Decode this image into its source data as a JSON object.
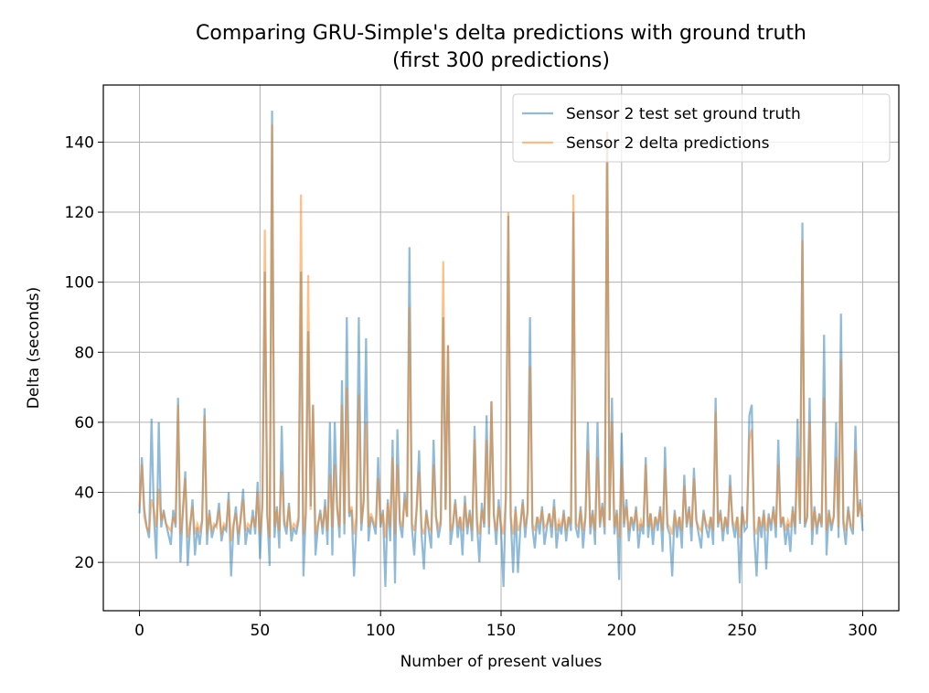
{
  "chart_data": {
    "type": "line",
    "title": "Comparing GRU-Simple's delta predictions with ground truth\n(first 300 predictions)",
    "x_label": "Number of present values",
    "y_label": "Delta (seconds)",
    "xlim": [
      -15,
      315
    ],
    "ylim": [
      6.2,
      156.3
    ],
    "xticks": [
      0,
      50,
      100,
      150,
      200,
      250,
      300
    ],
    "yticks": [
      20,
      40,
      60,
      80,
      100,
      120,
      140
    ],
    "grid": true,
    "legend": "upper right",
    "x": [
      0,
      1,
      2,
      3,
      4,
      5,
      6,
      7,
      8,
      9,
      10,
      11,
      12,
      13,
      14,
      15,
      16,
      17,
      18,
      19,
      20,
      21,
      22,
      23,
      24,
      25,
      26,
      27,
      28,
      29,
      30,
      31,
      32,
      33,
      34,
      35,
      36,
      37,
      38,
      39,
      40,
      41,
      42,
      43,
      44,
      45,
      46,
      47,
      48,
      49,
      50,
      51,
      52,
      53,
      54,
      55,
      56,
      57,
      58,
      59,
      60,
      61,
      62,
      63,
      64,
      65,
      66,
      67,
      68,
      69,
      70,
      71,
      72,
      73,
      74,
      75,
      76,
      77,
      78,
      79,
      80,
      81,
      82,
      83,
      84,
      85,
      86,
      87,
      88,
      89,
      90,
      91,
      92,
      93,
      94,
      95,
      96,
      97,
      98,
      99,
      100,
      101,
      102,
      103,
      104,
      105,
      106,
      107,
      108,
      109,
      110,
      111,
      112,
      113,
      114,
      115,
      116,
      117,
      118,
      119,
      120,
      121,
      122,
      123,
      124,
      125,
      126,
      127,
      128,
      129,
      130,
      131,
      132,
      133,
      134,
      135,
      136,
      137,
      138,
      139,
      140,
      141,
      142,
      143,
      144,
      145,
      146,
      147,
      148,
      149,
      150,
      151,
      152,
      153,
      154,
      155,
      156,
      157,
      158,
      159,
      160,
      161,
      162,
      163,
      164,
      165,
      166,
      167,
      168,
      169,
      170,
      171,
      172,
      173,
      174,
      175,
      176,
      177,
      178,
      179,
      180,
      181,
      182,
      183,
      184,
      185,
      186,
      187,
      188,
      189,
      190,
      191,
      192,
      193,
      194,
      195,
      196,
      197,
      198,
      199,
      200,
      201,
      202,
      203,
      204,
      205,
      206,
      207,
      208,
      209,
      210,
      211,
      212,
      213,
      214,
      215,
      216,
      217,
      218,
      219,
      220,
      221,
      222,
      223,
      224,
      225,
      226,
      227,
      228,
      229,
      230,
      231,
      232,
      233,
      234,
      235,
      236,
      237,
      238,
      239,
      240,
      241,
      242,
      243,
      244,
      245,
      246,
      247,
      248,
      249,
      250,
      251,
      252,
      253,
      254,
      255,
      256,
      257,
      258,
      259,
      260,
      261,
      262,
      263,
      264,
      265,
      266,
      267,
      268,
      269,
      270,
      271,
      272,
      273,
      274,
      275,
      276,
      277,
      278,
      279,
      280,
      281,
      282,
      283,
      284,
      285,
      286,
      287,
      288,
      289,
      290,
      291,
      292,
      293,
      294,
      295,
      296,
      297,
      298,
      299,
      300
    ],
    "series": [
      {
        "name": "Sensor 2 test set ground truth",
        "color": "#1f77b4",
        "values": [
          34,
          50,
          35,
          30,
          27,
          61,
          33,
          21,
          60,
          30,
          35,
          31,
          28,
          25,
          35,
          30,
          67,
          20,
          35,
          46,
          19,
          30,
          38,
          22,
          30,
          25,
          32,
          64,
          25,
          35,
          27,
          30,
          31,
          37,
          26,
          30,
          29,
          40,
          16,
          30,
          36,
          25,
          33,
          41,
          25,
          30,
          28,
          35,
          28,
          43,
          21,
          38,
          103,
          34,
          19,
          149,
          27,
          36,
          24,
          59,
          31,
          28,
          37,
          26,
          30,
          28,
          32,
          103,
          16,
          34,
          86,
          36,
          65,
          22,
          30,
          35,
          28,
          38,
          25,
          60,
          22,
          60,
          36,
          27,
          72,
          28,
          90,
          33,
          35,
          16,
          31,
          90,
          29,
          38,
          84,
          26,
          33,
          31,
          28,
          50,
          30,
          35,
          13,
          38,
          26,
          55,
          14,
          58,
          31,
          27,
          40,
          33,
          110,
          30,
          22,
          36,
          52,
          28,
          18,
          35,
          29,
          24,
          55,
          33,
          27,
          31,
          90,
          35,
          82,
          25,
          30,
          38,
          27,
          33,
          22,
          39,
          28,
          35,
          26,
          59,
          31,
          20,
          37,
          30,
          62,
          28,
          66,
          34,
          25,
          38,
          29,
          13,
          40,
          119,
          33,
          17,
          36,
          17,
          30,
          38,
          27,
          35,
          90,
          30,
          24,
          33,
          28,
          36,
          25,
          30,
          34,
          27,
          38,
          24,
          31,
          28,
          35,
          26,
          33,
          29,
          120,
          30,
          27,
          36,
          24,
          33,
          60,
          28,
          35,
          25,
          60,
          30,
          37,
          28,
          143,
          32,
          67,
          28,
          35,
          15,
          57,
          30,
          38,
          26,
          33,
          29,
          36,
          24,
          31,
          28,
          50,
          27,
          34,
          25,
          33,
          29,
          36,
          23,
          53,
          30,
          28,
          16,
          35,
          27,
          33,
          24,
          45,
          30,
          36,
          26,
          47,
          32,
          28,
          24,
          35,
          30,
          27,
          33,
          25,
          67,
          30,
          35,
          26,
          33,
          28,
          45,
          31,
          27,
          33,
          14,
          36,
          29,
          30,
          62,
          65,
          28,
          16,
          33,
          27,
          35,
          18,
          34,
          29,
          36,
          27,
          55,
          30,
          33,
          25,
          31,
          23,
          36,
          28,
          61,
          31,
          117,
          30,
          33,
          67,
          25,
          36,
          28,
          34,
          30,
          85,
          22,
          35,
          29,
          33,
          60,
          27,
          91,
          31,
          25,
          36,
          30,
          28,
          59,
          33,
          38,
          29
        ]
      },
      {
        "name": "Sensor 2 delta predictions",
        "color": "#ff7f0e",
        "values": [
          36,
          48,
          33,
          30,
          29,
          38,
          35,
          30,
          41,
          32,
          34,
          31,
          30,
          29,
          33,
          31,
          65,
          28,
          34,
          44,
          27,
          31,
          36,
          28,
          31,
          29,
          32,
          62,
          28,
          34,
          29,
          31,
          30,
          35,
          28,
          31,
          30,
          38,
          26,
          31,
          34,
          28,
          32,
          38,
          29,
          31,
          30,
          33,
          30,
          40,
          28,
          36,
          115,
          33,
          27,
          145,
          30,
          35,
          29,
          46,
          32,
          30,
          36,
          29,
          31,
          30,
          33,
          125,
          28,
          34,
          102,
          35,
          65,
          28,
          31,
          34,
          30,
          36,
          29,
          45,
          30,
          48,
          35,
          30,
          65,
          31,
          70,
          34,
          36,
          28,
          33,
          68,
          31,
          37,
          60,
          30,
          34,
          32,
          30,
          44,
          31,
          34,
          27,
          37,
          30,
          50,
          28,
          48,
          32,
          30,
          38,
          33,
          93,
          31,
          29,
          35,
          46,
          30,
          28,
          34,
          30,
          29,
          48,
          33,
          30,
          32,
          106,
          35,
          82,
          29,
          31,
          37,
          30,
          33,
          29,
          37,
          30,
          34,
          29,
          55,
          32,
          28,
          35,
          31,
          55,
          30,
          66,
          33,
          29,
          36,
          31,
          28,
          38,
          120,
          33,
          28,
          35,
          29,
          31,
          37,
          30,
          34,
          76,
          31,
          29,
          33,
          31,
          35,
          30,
          31,
          34,
          30,
          36,
          29,
          32,
          30,
          34,
          29,
          33,
          31,
          125,
          31,
          30,
          35,
          29,
          33,
          52,
          30,
          34,
          29,
          50,
          31,
          36,
          30,
          143,
          32,
          60,
          30,
          34,
          27,
          48,
          31,
          36,
          29,
          33,
          31,
          35,
          29,
          32,
          30,
          48,
          30,
          34,
          29,
          33,
          31,
          35,
          29,
          47,
          31,
          30,
          28,
          34,
          30,
          33,
          29,
          42,
          31,
          35,
          30,
          44,
          32,
          30,
          29,
          34,
          31,
          30,
          33,
          29,
          63,
          31,
          34,
          29,
          33,
          30,
          42,
          32,
          30,
          33,
          27,
          35,
          31,
          32,
          55,
          58,
          30,
          28,
          33,
          30,
          34,
          29,
          33,
          31,
          35,
          30,
          48,
          31,
          33,
          29,
          32,
          30,
          35,
          30,
          50,
          32,
          112,
          31,
          33,
          60,
          29,
          35,
          30,
          33,
          31,
          67,
          29,
          34,
          31,
          33,
          50,
          30,
          78,
          32,
          29,
          35,
          31,
          30,
          52,
          33,
          37,
          33
        ]
      }
    ]
  }
}
